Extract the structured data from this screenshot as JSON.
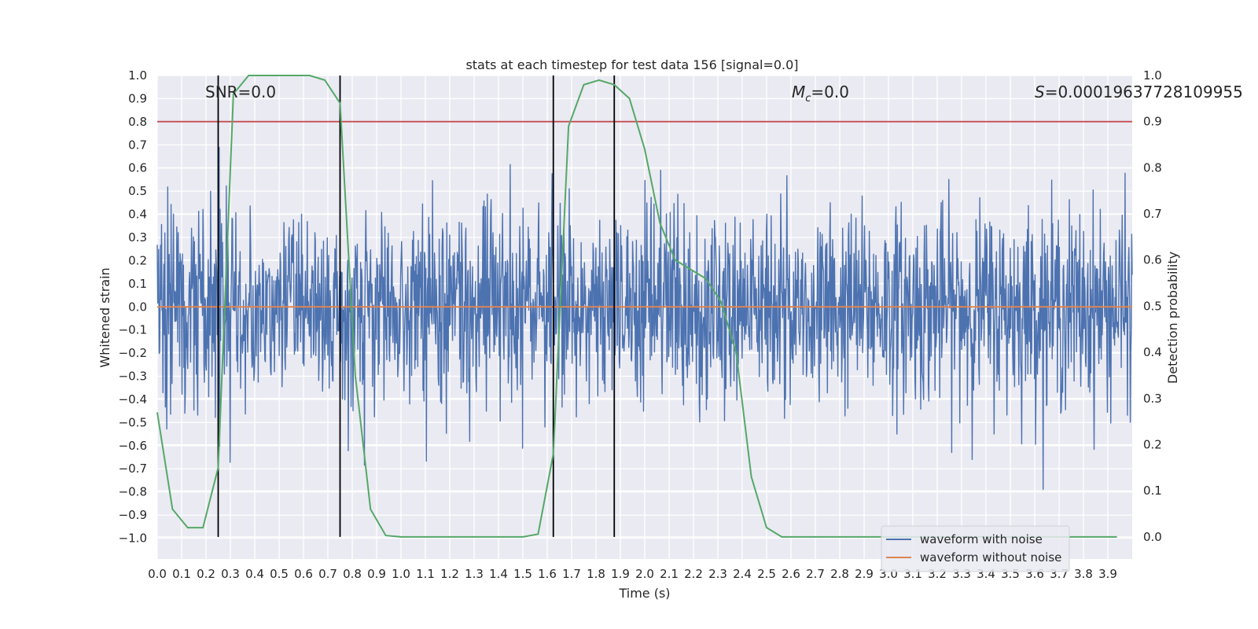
{
  "chart_data": {
    "type": "line",
    "title": "stats at each timestep for test data 156 [signal=0.0]",
    "xlabel": "Time (s)",
    "ylabel": "Whitened strain",
    "y2label": "Detection probability",
    "xlim": [
      0.0,
      4.0
    ],
    "ylim": [
      -1.09,
      1.0
    ],
    "y2lim": [
      -0.048,
      1.0
    ],
    "x_ticks": [
      0.0,
      0.1,
      0.2,
      0.3,
      0.4,
      0.5,
      0.6,
      0.7,
      0.8,
      0.9,
      1.0,
      1.1,
      1.2,
      1.3,
      1.4,
      1.5,
      1.6,
      1.7,
      1.8,
      1.9,
      2.0,
      2.1,
      2.2,
      2.3,
      2.4,
      2.5,
      2.6,
      2.7,
      2.8,
      2.9,
      3.0,
      3.1,
      3.2,
      3.3,
      3.4,
      3.5,
      3.6,
      3.7,
      3.8,
      3.9
    ],
    "y_ticks": [
      1.0,
      0.9,
      0.8,
      0.7,
      0.6,
      0.5,
      0.4,
      0.3,
      0.2,
      0.1,
      0.0,
      -0.1,
      -0.2,
      -0.3,
      -0.4,
      -0.5,
      -0.6,
      -0.7,
      -0.8,
      -0.9,
      -1.0
    ],
    "y2_ticks": [
      1.0,
      0.9,
      0.8,
      0.7,
      0.6,
      0.5,
      0.4,
      0.3,
      0.2,
      0.1,
      0.0
    ],
    "x_tick_labels": [
      "0.0",
      "0.1",
      "0.2",
      "0.3",
      "0.4",
      "0.5",
      "0.6",
      "0.7",
      "0.8",
      "0.9",
      "1.0",
      "1.1",
      "1.2",
      "1.3",
      "1.4",
      "1.5",
      "1.6",
      "1.7",
      "1.8",
      "1.9",
      "2.0",
      "2.1",
      "2.2",
      "2.3",
      "2.4",
      "2.5",
      "2.6",
      "2.7",
      "2.8",
      "2.9",
      "3.0",
      "3.1",
      "3.2",
      "3.3",
      "3.4",
      "3.5",
      "3.6",
      "3.7",
      "3.8",
      "3.9"
    ],
    "y_tick_labels": [
      "1.0",
      "0.9",
      "0.8",
      "0.7",
      "0.6",
      "0.5",
      "0.4",
      "0.3",
      "0.2",
      "0.1",
      "0.0",
      "−0.1",
      "−0.2",
      "−0.3",
      "−0.4",
      "−0.5",
      "−0.6",
      "−0.7",
      "−0.8",
      "−0.9",
      "−1.0"
    ],
    "y2_tick_labels": [
      "1.0",
      "0.9",
      "0.8",
      "0.7",
      "0.6",
      "0.5",
      "0.4",
      "0.3",
      "0.2",
      "0.1",
      "0.0"
    ],
    "annotations": {
      "snr": "SNR=0.0",
      "mc_symbol": "M",
      "mc_sub": "c",
      "mc_value": "=0.0",
      "s_symbol": "S",
      "s_value": "=0.00019637728109955"
    },
    "threshold": {
      "axis": "right",
      "value": 0.9,
      "color": "#c44e52"
    },
    "vertical_lines": [
      0.25,
      0.75,
      1.625,
      1.875
    ],
    "series": [
      {
        "name": "waveform with noise",
        "axis": "left",
        "color": "#4c72b0",
        "kind": "noise",
        "noise_std": 0.21,
        "noise_clip": [
          -1.0,
          0.92
        ],
        "samples": 2048,
        "show_in_legend": true
      },
      {
        "name": "waveform without noise",
        "axis": "left",
        "color": "#dd8452",
        "x": [
          0.0,
          4.0
        ],
        "values": [
          0.0,
          0.0
        ],
        "show_in_legend": true
      },
      {
        "name": "detection probability",
        "axis": "right",
        "color": "#55a868",
        "x": [
          0.0,
          0.0625,
          0.125,
          0.1875,
          0.25,
          0.3125,
          0.375,
          0.4375,
          0.5,
          0.5625,
          0.625,
          0.6875,
          0.75,
          0.8125,
          0.875,
          0.9375,
          1.0,
          1.0625,
          1.125,
          1.1875,
          1.25,
          1.3125,
          1.375,
          1.4375,
          1.5,
          1.5625,
          1.625,
          1.6875,
          1.75,
          1.8125,
          1.875,
          1.9375,
          2.0,
          2.0625,
          2.125,
          2.1875,
          2.25,
          2.3125,
          2.375,
          2.4375,
          2.5,
          2.5625,
          2.625,
          2.6875,
          2.75,
          2.8125,
          2.875,
          2.9375,
          3.0,
          3.0625,
          3.125,
          3.1875,
          3.25,
          3.3125,
          3.375,
          3.4375,
          3.5,
          3.5625,
          3.625,
          3.6875,
          3.75,
          3.8125,
          3.875,
          3.9375
        ],
        "values": [
          0.27,
          0.06,
          0.02,
          0.02,
          0.15,
          0.96,
          1.0,
          1.0,
          1.0,
          1.0,
          1.0,
          0.99,
          0.94,
          0.35,
          0.06,
          0.003,
          0.0,
          0.0,
          0.0,
          0.0,
          0.0,
          0.0,
          0.0,
          0.0,
          0.0,
          0.006,
          0.18,
          0.89,
          0.98,
          0.99,
          0.98,
          0.95,
          0.84,
          0.68,
          0.6,
          0.58,
          0.56,
          0.51,
          0.4,
          0.13,
          0.02,
          0.0,
          0.0,
          0.0,
          0.0,
          0.0,
          0.0,
          0.0,
          0.0,
          0.0,
          0.0,
          0.0,
          0.0,
          0.0,
          0.0,
          0.0,
          0.0,
          0.0,
          0.0,
          0.0,
          0.0,
          0.0,
          0.0,
          0.0
        ],
        "show_in_legend": false
      }
    ],
    "legend": {
      "placement": "lower-right"
    }
  }
}
